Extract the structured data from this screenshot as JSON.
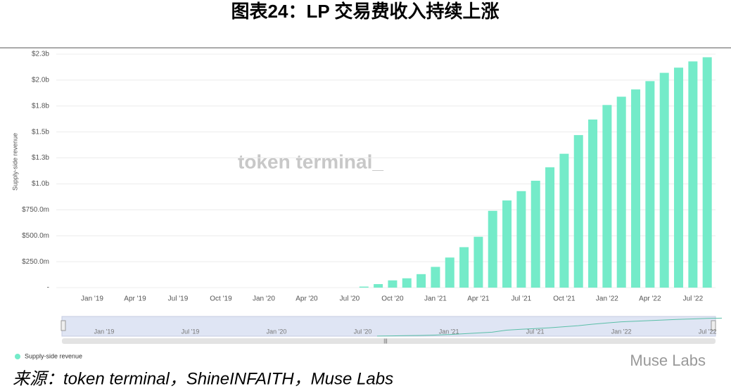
{
  "chart_data": {
    "type": "bar",
    "title": "图表24：LP 交易费收入持续上涨",
    "y_label": "Supply-side revenue",
    "watermark": "token terminal_",
    "categories": [
      "Jan '19",
      null,
      null,
      "Apr '19",
      null,
      null,
      "Jul '19",
      null,
      null,
      "Oct '19",
      null,
      null,
      "Jan '20",
      null,
      null,
      "Apr '20",
      null,
      null,
      "Jul '20",
      null,
      null,
      "Oct '20",
      null,
      null,
      "Jan '21",
      null,
      null,
      "Apr '21",
      null,
      null,
      "Jul '21",
      null,
      null,
      "Oct '21",
      null,
      null,
      "Jan '22",
      null,
      null,
      "Apr '22",
      null,
      null,
      "Jul '22",
      null
    ],
    "series": [
      {
        "name": "Supply-side revenue",
        "color": "#74ebc9",
        "values": [
          null,
          null,
          null,
          null,
          null,
          null,
          null,
          null,
          null,
          null,
          null,
          null,
          null,
          null,
          null,
          null,
          null,
          null,
          null,
          0.01,
          0.034,
          0.07,
          0.09,
          0.13,
          0.2,
          0.29,
          0.39,
          0.49,
          0.74,
          0.84,
          0.93,
          1.03,
          1.16,
          1.29,
          1.47,
          1.62,
          1.76,
          1.84,
          1.91,
          1.99,
          2.07,
          2.12,
          2.18,
          2.22
        ]
      }
    ],
    "ylim": [
      0,
      2.25
    ],
    "yticks": [
      {
        "value": 0,
        "label": "-"
      },
      {
        "value": 0.25,
        "label": "$250.0m"
      },
      {
        "value": 0.5,
        "label": "$500.0m"
      },
      {
        "value": 0.75,
        "label": "$750.0m"
      },
      {
        "value": 1.0,
        "label": "$1.0b"
      },
      {
        "value": 1.25,
        "label": "$1.3b"
      },
      {
        "value": 1.5,
        "label": "$1.5b"
      },
      {
        "value": 1.75,
        "label": "$1.8b"
      },
      {
        "value": 2.0,
        "label": "$2.0b"
      },
      {
        "value": 2.25,
        "label": "$2.3b"
      }
    ],
    "grid": true,
    "source": "来源：token terminal，ShineINFAITH，Muse Labs",
    "logo": "Muse Labs"
  }
}
